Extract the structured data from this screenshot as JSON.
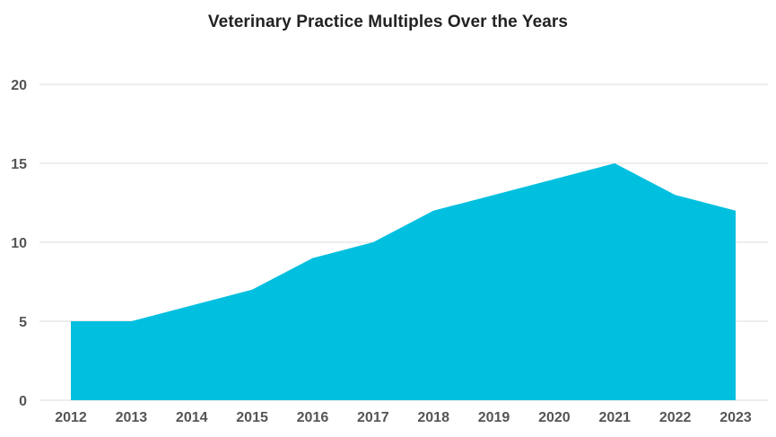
{
  "chart_data": {
    "type": "area",
    "title": "Veterinary Practice Multiples Over the Years",
    "xlabel": "",
    "ylabel": "",
    "categories": [
      "2012",
      "2013",
      "2014",
      "2015",
      "2016",
      "2017",
      "2018",
      "2019",
      "2020",
      "2021",
      "2022",
      "2023"
    ],
    "series": [
      {
        "values": [
          5,
          5,
          6,
          7,
          9,
          10,
          12,
          13,
          14,
          15,
          13,
          12
        ]
      }
    ],
    "ylim": [
      0,
      20
    ],
    "yticks": [
      0,
      5,
      10,
      15,
      20
    ],
    "grid": true,
    "legend": "none",
    "colors": {
      "area": "#00bfdf",
      "grid": "#dddddd",
      "axis_text": "#555555",
      "title": "#222222"
    }
  }
}
